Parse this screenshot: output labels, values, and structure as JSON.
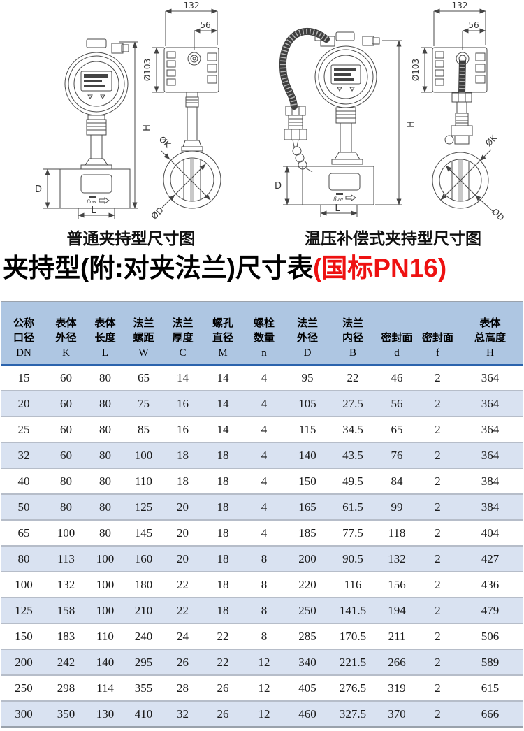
{
  "diagrams": {
    "left": {
      "caption": "普通夹持型尺寸图",
      "flow_label": "flow",
      "dims": {
        "width": "132",
        "sub_width": "56",
        "head_dia": "Ø103",
        "total_height": "H",
        "body_height": "D",
        "body_length": "L",
        "clamp_dia": "ØK",
        "bore_dia": "ØD"
      }
    },
    "right": {
      "caption": "温压补偿式夹持型尺寸图",
      "flow_label": "flow",
      "dims": {
        "width": "132",
        "sub_width": "56",
        "head_dia": "Ø103",
        "total_height": "H",
        "body_height": "D",
        "body_length": "L",
        "clamp_dia": "ØK",
        "bore_dia": "ØD"
      }
    }
  },
  "title": {
    "main": "夹持型(附:对夹法兰)尺寸表",
    "highlight": "(国标PN16)"
  },
  "colors": {
    "title_highlight": "#ee1111",
    "table_header_bg": "#aec6e2",
    "table_stripe_bg": "#d9e2f1",
    "header_rule": "#2b63ad",
    "row_divider": "#b6bdc9"
  },
  "table": {
    "headers": [
      {
        "lines": [
          "公称",
          "口径"
        ],
        "letter": "DN"
      },
      {
        "lines": [
          "表体",
          "外径"
        ],
        "letter": "K"
      },
      {
        "lines": [
          "表体",
          "长度"
        ],
        "letter": "L"
      },
      {
        "lines": [
          "法兰",
          "螺距"
        ],
        "letter": "W"
      },
      {
        "lines": [
          "法兰",
          "厚度"
        ],
        "letter": "C"
      },
      {
        "lines": [
          "螺孔",
          "直径"
        ],
        "letter": "M"
      },
      {
        "lines": [
          "螺栓",
          "数量"
        ],
        "letter": "n"
      },
      {
        "lines": [
          "法兰",
          "外径"
        ],
        "letter": "D"
      },
      {
        "lines": [
          "法兰",
          "内径"
        ],
        "letter": "B"
      },
      {
        "lines": [
          "密封面"
        ],
        "letter": "d"
      },
      {
        "lines": [
          "密封面"
        ],
        "letter": "f"
      },
      {
        "lines": [
          "表体",
          "总高度"
        ],
        "letter": "H"
      }
    ],
    "rows": [
      [
        "15",
        "60",
        "80",
        "65",
        "14",
        "14",
        "4",
        "95",
        "22",
        "46",
        "2",
        "364"
      ],
      [
        "20",
        "60",
        "80",
        "75",
        "16",
        "14",
        "4",
        "105",
        "27.5",
        "56",
        "2",
        "364"
      ],
      [
        "25",
        "60",
        "80",
        "85",
        "16",
        "14",
        "4",
        "115",
        "34.5",
        "65",
        "2",
        "364"
      ],
      [
        "32",
        "60",
        "80",
        "100",
        "18",
        "18",
        "4",
        "140",
        "43.5",
        "76",
        "2",
        "364"
      ],
      [
        "40",
        "80",
        "80",
        "110",
        "18",
        "18",
        "4",
        "150",
        "49.5",
        "84",
        "2",
        "384"
      ],
      [
        "50",
        "80",
        "80",
        "125",
        "20",
        "18",
        "4",
        "165",
        "61.5",
        "99",
        "2",
        "384"
      ],
      [
        "65",
        "100",
        "80",
        "145",
        "20",
        "18",
        "4",
        "185",
        "77.5",
        "118",
        "2",
        "404"
      ],
      [
        "80",
        "113",
        "100",
        "160",
        "20",
        "18",
        "8",
        "200",
        "90.5",
        "132",
        "2",
        "427"
      ],
      [
        "100",
        "132",
        "100",
        "180",
        "22",
        "18",
        "8",
        "220",
        "116",
        "156",
        "2",
        "436"
      ],
      [
        "125",
        "158",
        "100",
        "210",
        "22",
        "18",
        "8",
        "250",
        "141.5",
        "194",
        "2",
        "479"
      ],
      [
        "150",
        "183",
        "110",
        "240",
        "24",
        "22",
        "8",
        "285",
        "170.5",
        "211",
        "2",
        "506"
      ],
      [
        "200",
        "242",
        "140",
        "295",
        "26",
        "22",
        "12",
        "340",
        "221.5",
        "266",
        "2",
        "589"
      ],
      [
        "250",
        "298",
        "114",
        "355",
        "28",
        "26",
        "12",
        "405",
        "276.5",
        "319",
        "2",
        "615"
      ],
      [
        "300",
        "350",
        "130",
        "410",
        "32",
        "26",
        "12",
        "460",
        "327.5",
        "370",
        "2",
        "666"
      ]
    ]
  }
}
